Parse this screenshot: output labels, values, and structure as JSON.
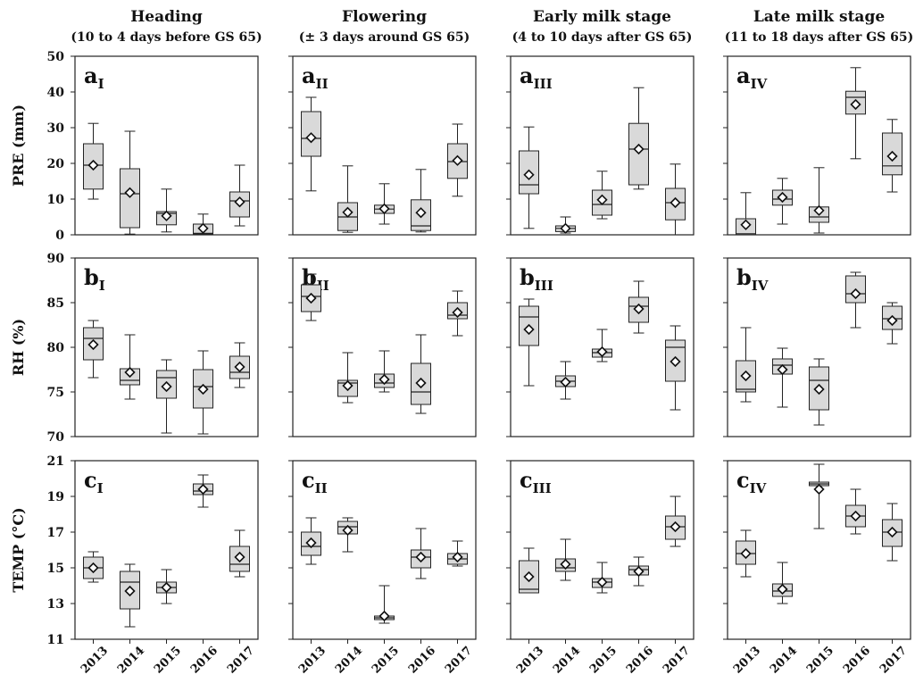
{
  "chart_data": {
    "type": "boxplot",
    "columns": [
      {
        "title": "Heading",
        "subtitle": "(10 to 4 days before GS 65)"
      },
      {
        "title": "Flowering",
        "subtitle": "(± 3 days around GS 65)"
      },
      {
        "title": "Early milk stage",
        "subtitle": "(4 to 10 days after GS 65)"
      },
      {
        "title": "Late milk stage",
        "subtitle": "(11 to 18 days after GS 65)"
      }
    ],
    "categories": [
      "2013",
      "2014",
      "2015",
      "2016",
      "2017"
    ],
    "rows": [
      {
        "ylabel": "PRE (mm)",
        "ylim": [
          0,
          50
        ],
        "yticks": [
          0,
          10,
          20,
          30,
          40,
          50
        ],
        "panels": [
          {
            "letter": "a",
            "sub": "I",
            "boxes": [
              {
                "min": 10.0,
                "q1": 12.8,
                "median": 19.5,
                "q3": 25.5,
                "max": 31.2,
                "mean": 19.5
              },
              {
                "min": 0.2,
                "q1": 2.0,
                "median": 11.5,
                "q3": 18.5,
                "max": 29.0,
                "mean": 11.8
              },
              {
                "min": 0.8,
                "q1": 2.8,
                "median": 6.0,
                "q3": 6.5,
                "max": 12.8,
                "mean": 5.3
              },
              {
                "min": 0.0,
                "q1": 0.2,
                "median": 0.4,
                "q3": 3.0,
                "max": 5.8,
                "mean": 1.8
              },
              {
                "min": 2.5,
                "q1": 5.0,
                "median": 9.5,
                "q3": 12.0,
                "max": 19.5,
                "mean": 9.2
              }
            ]
          },
          {
            "letter": "a",
            "sub": "II",
            "boxes": [
              {
                "min": 12.3,
                "q1": 22.0,
                "median": 27.0,
                "q3": 34.5,
                "max": 38.5,
                "mean": 27.2
              },
              {
                "min": 0.7,
                "q1": 1.2,
                "median": 5.0,
                "q3": 9.0,
                "max": 19.3,
                "mean": 6.3
              },
              {
                "min": 3.0,
                "q1": 6.0,
                "median": 7.2,
                "q3": 8.3,
                "max": 14.3,
                "mean": 7.3
              },
              {
                "min": 0.8,
                "q1": 1.2,
                "median": 2.5,
                "q3": 9.8,
                "max": 18.3,
                "mean": 6.2
              },
              {
                "min": 10.8,
                "q1": 15.8,
                "median": 20.5,
                "q3": 25.5,
                "max": 31.0,
                "mean": 20.8
              }
            ]
          },
          {
            "letter": "a",
            "sub": "III",
            "boxes": [
              {
                "min": 1.8,
                "q1": 11.5,
                "median": 14.0,
                "q3": 23.5,
                "max": 30.2,
                "mean": 16.8
              },
              {
                "min": 0.5,
                "q1": 0.9,
                "median": 1.8,
                "q3": 2.5,
                "max": 5.0,
                "mean": 1.8
              },
              {
                "min": 4.5,
                "q1": 5.5,
                "median": 8.5,
                "q3": 12.5,
                "max": 17.8,
                "mean": 9.8
              },
              {
                "min": 12.8,
                "q1": 14.0,
                "median": 24.0,
                "q3": 31.2,
                "max": 41.2,
                "mean": 24.0
              },
              {
                "min": 0.0,
                "q1": 4.2,
                "median": 9.0,
                "q3": 13.0,
                "max": 19.8,
                "mean": 9.0
              }
            ]
          },
          {
            "letter": "a",
            "sub": "IV",
            "boxes": [
              {
                "min": 0.0,
                "q1": 0.0,
                "median": 0.3,
                "q3": 4.5,
                "max": 11.8,
                "mean": 2.8
              },
              {
                "min": 3.0,
                "q1": 8.3,
                "median": 10.0,
                "q3": 12.5,
                "max": 15.8,
                "mean": 10.5
              },
              {
                "min": 0.5,
                "q1": 3.5,
                "median": 5.0,
                "q3": 7.8,
                "max": 18.8,
                "mean": 6.8
              },
              {
                "min": 21.3,
                "q1": 33.8,
                "median": 38.5,
                "q3": 40.2,
                "max": 46.8,
                "mean": 36.5
              },
              {
                "min": 12.0,
                "q1": 16.8,
                "median": 19.3,
                "q3": 28.5,
                "max": 32.3,
                "mean": 22.0
              }
            ]
          }
        ]
      },
      {
        "ylabel": "RH (%)",
        "ylim": [
          70,
          90
        ],
        "yticks": [
          70,
          75,
          80,
          85,
          90
        ],
        "panels": [
          {
            "letter": "b",
            "sub": "I",
            "boxes": [
              {
                "min": 76.6,
                "q1": 78.6,
                "median": 81.0,
                "q3": 82.2,
                "max": 83.0,
                "mean": 80.3
              },
              {
                "min": 74.2,
                "q1": 75.8,
                "median": 76.3,
                "q3": 77.6,
                "max": 81.4,
                "mean": 77.2
              },
              {
                "min": 70.4,
                "q1": 74.3,
                "median": 76.6,
                "q3": 77.4,
                "max": 78.6,
                "mean": 75.6
              },
              {
                "min": 70.3,
                "q1": 73.2,
                "median": 75.6,
                "q3": 77.5,
                "max": 79.6,
                "mean": 75.3
              },
              {
                "min": 75.5,
                "q1": 76.5,
                "median": 77.2,
                "q3": 79.0,
                "max": 80.5,
                "mean": 77.8
              }
            ]
          },
          {
            "letter": "b",
            "sub": "II",
            "boxes": [
              {
                "min": 83.0,
                "q1": 84.0,
                "median": 85.7,
                "q3": 87.0,
                "max": 88.2,
                "mean": 85.5
              },
              {
                "min": 73.8,
                "q1": 74.5,
                "median": 76.0,
                "q3": 76.3,
                "max": 79.4,
                "mean": 75.7
              },
              {
                "min": 75.0,
                "q1": 75.5,
                "median": 76.0,
                "q3": 77.0,
                "max": 79.6,
                "mean": 76.4
              },
              {
                "min": 72.6,
                "q1": 73.6,
                "median": 75.0,
                "q3": 78.2,
                "max": 81.4,
                "mean": 76.0
              },
              {
                "min": 81.3,
                "q1": 83.2,
                "median": 83.6,
                "q3": 85.0,
                "max": 86.3,
                "mean": 83.9
              }
            ]
          },
          {
            "letter": "b",
            "sub": "III",
            "boxes": [
              {
                "min": 75.7,
                "q1": 80.2,
                "median": 83.4,
                "q3": 84.6,
                "max": 85.4,
                "mean": 82.0
              },
              {
                "min": 74.2,
                "q1": 75.6,
                "median": 76.2,
                "q3": 76.8,
                "max": 78.4,
                "mean": 76.1
              },
              {
                "min": 78.4,
                "q1": 78.9,
                "median": 79.4,
                "q3": 79.8,
                "max": 82.0,
                "mean": 79.5
              },
              {
                "min": 81.6,
                "q1": 82.8,
                "median": 84.6,
                "q3": 85.6,
                "max": 87.4,
                "mean": 84.3
              },
              {
                "min": 73.0,
                "q1": 76.2,
                "median": 80.0,
                "q3": 80.8,
                "max": 82.4,
                "mean": 78.4
              }
            ]
          },
          {
            "letter": "b",
            "sub": "IV",
            "boxes": [
              {
                "min": 73.9,
                "q1": 75.0,
                "median": 75.3,
                "q3": 78.5,
                "max": 82.2,
                "mean": 76.8
              },
              {
                "min": 73.3,
                "q1": 77.0,
                "median": 78.0,
                "q3": 78.7,
                "max": 79.9,
                "mean": 77.5
              },
              {
                "min": 71.3,
                "q1": 73.0,
                "median": 76.3,
                "q3": 77.8,
                "max": 78.7,
                "mean": 75.3
              },
              {
                "min": 82.2,
                "q1": 85.0,
                "median": 86.0,
                "q3": 88.0,
                "max": 88.4,
                "mean": 86.0
              },
              {
                "min": 80.4,
                "q1": 82.0,
                "median": 83.2,
                "q3": 84.6,
                "max": 85.0,
                "mean": 83.0
              }
            ]
          }
        ]
      },
      {
        "ylabel": "TEMP (°C)",
        "ylim": [
          11,
          21
        ],
        "yticks": [
          11,
          13,
          15,
          17,
          19,
          21
        ],
        "panels": [
          {
            "letter": "c",
            "sub": "I",
            "boxes": [
              {
                "min": 14.2,
                "q1": 14.4,
                "median": 15.0,
                "q3": 15.6,
                "max": 15.9,
                "mean": 15.0
              },
              {
                "min": 11.7,
                "q1": 12.7,
                "median": 14.2,
                "q3": 14.8,
                "max": 15.2,
                "mean": 13.7
              },
              {
                "min": 13.0,
                "q1": 13.6,
                "median": 13.9,
                "q3": 14.2,
                "max": 14.9,
                "mean": 13.9
              },
              {
                "min": 18.4,
                "q1": 19.1,
                "median": 19.3,
                "q3": 19.7,
                "max": 20.2,
                "mean": 19.4
              },
              {
                "min": 14.5,
                "q1": 14.8,
                "median": 15.2,
                "q3": 16.2,
                "max": 17.1,
                "mean": 15.6
              }
            ]
          },
          {
            "letter": "c",
            "sub": "II",
            "boxes": [
              {
                "min": 15.2,
                "q1": 15.7,
                "median": 16.2,
                "q3": 17.0,
                "max": 17.8,
                "mean": 16.4
              },
              {
                "min": 15.9,
                "q1": 16.9,
                "median": 17.3,
                "q3": 17.6,
                "max": 17.8,
                "mean": 17.1
              },
              {
                "min": 11.9,
                "q1": 12.1,
                "median": 12.2,
                "q3": 12.3,
                "max": 14.0,
                "mean": 12.3
              },
              {
                "min": 14.4,
                "q1": 15.0,
                "median": 15.6,
                "q3": 16.0,
                "max": 17.2,
                "mean": 15.6
              },
              {
                "min": 15.1,
                "q1": 15.2,
                "median": 15.5,
                "q3": 15.8,
                "max": 16.5,
                "mean": 15.6
              }
            ]
          },
          {
            "letter": "c",
            "sub": "III",
            "boxes": [
              {
                "min": 13.6,
                "q1": 13.6,
                "median": 13.8,
                "q3": 15.4,
                "max": 16.1,
                "mean": 14.5
              },
              {
                "min": 14.3,
                "q1": 14.8,
                "median": 15.0,
                "q3": 15.5,
                "max": 16.6,
                "mean": 15.2
              },
              {
                "min": 13.6,
                "q1": 13.9,
                "median": 14.2,
                "q3": 14.4,
                "max": 15.3,
                "mean": 14.2
              },
              {
                "min": 14.0,
                "q1": 14.6,
                "median": 14.9,
                "q3": 15.1,
                "max": 15.6,
                "mean": 14.8
              },
              {
                "min": 16.2,
                "q1": 16.6,
                "median": 17.3,
                "q3": 17.9,
                "max": 19.0,
                "mean": 17.3
              }
            ]
          },
          {
            "letter": "c",
            "sub": "IV",
            "boxes": [
              {
                "min": 14.5,
                "q1": 15.2,
                "median": 15.8,
                "q3": 16.5,
                "max": 17.1,
                "mean": 15.8
              },
              {
                "min": 13.0,
                "q1": 13.4,
                "median": 13.7,
                "q3": 14.1,
                "max": 15.3,
                "mean": 13.8
              },
              {
                "min": 17.2,
                "q1": 19.6,
                "median": 19.7,
                "q3": 19.8,
                "max": 20.8,
                "mean": 19.4
              },
              {
                "min": 16.9,
                "q1": 17.3,
                "median": 17.9,
                "q3": 18.5,
                "max": 19.4,
                "mean": 17.9
              },
              {
                "min": 15.4,
                "q1": 16.2,
                "median": 17.0,
                "q3": 17.7,
                "max": 18.6,
                "mean": 17.0
              }
            ]
          }
        ]
      }
    ],
    "grid": false,
    "legend": "none"
  }
}
